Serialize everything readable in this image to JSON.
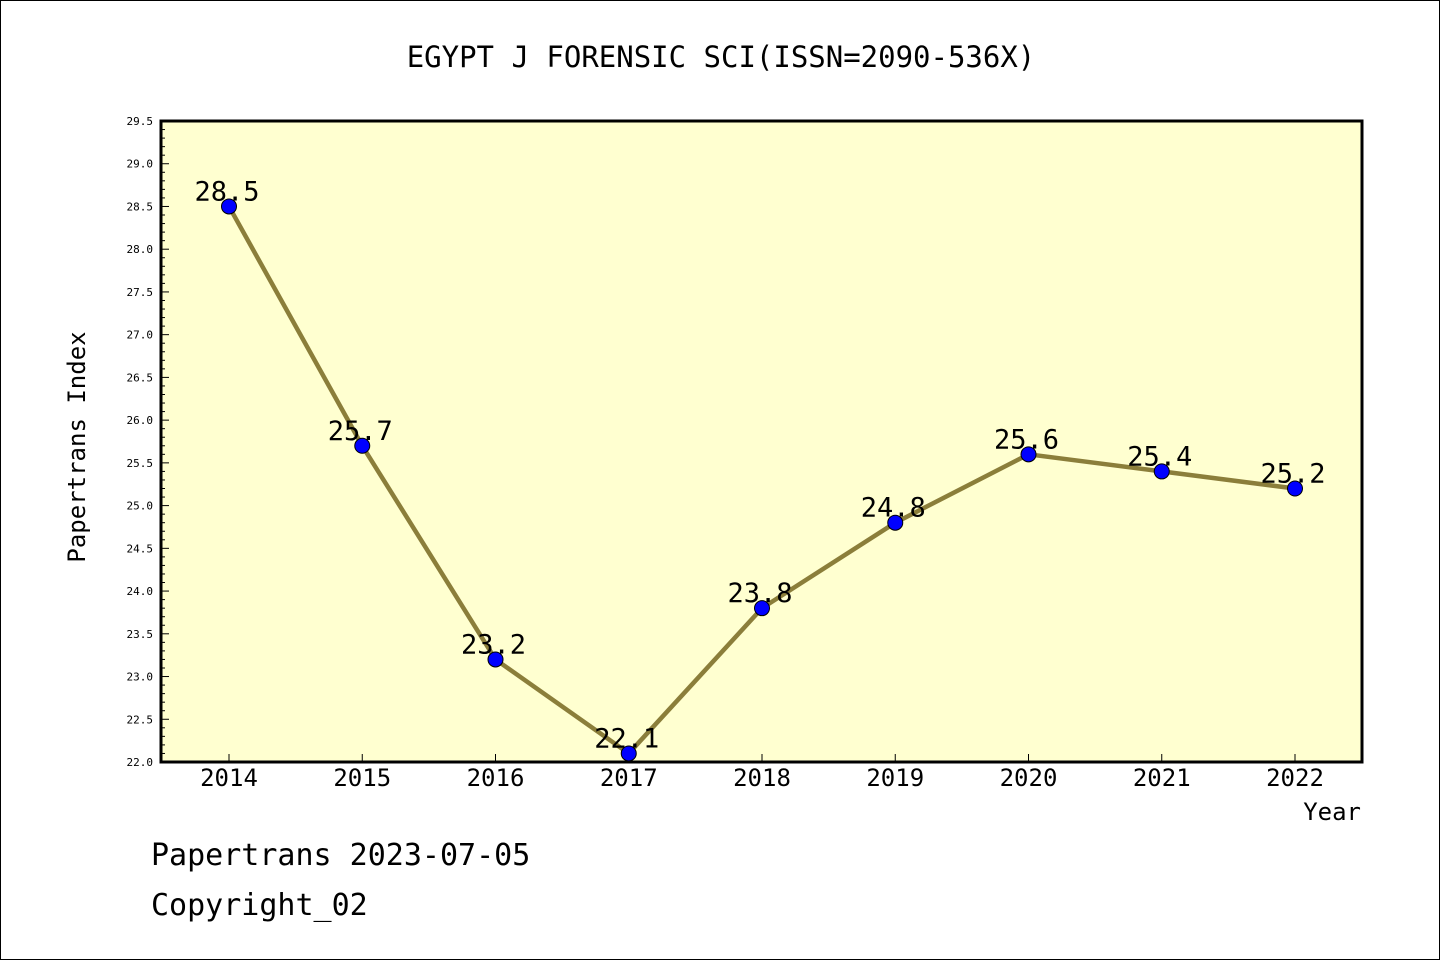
{
  "chart_data": {
    "type": "line",
    "title": "EGYPT J FORENSIC SCI(ISSN=2090-536X)",
    "xlabel": "Year",
    "ylabel": "Papertrans Index",
    "categories": [
      "2014",
      "2015",
      "2016",
      "2017",
      "2018",
      "2019",
      "2020",
      "2021",
      "2022"
    ],
    "series": [
      {
        "values": [
          28.5,
          25.7,
          23.2,
          22.1,
          23.8,
          24.8,
          25.6,
          25.4,
          25.2
        ],
        "labels": [
          "28.5",
          "25.7",
          "23.2",
          "22.1",
          "23.8",
          "24.8",
          "25.6",
          "25.4",
          "25.2"
        ],
        "line_color": "#8b7e3a",
        "marker_color": "#0000ff"
      }
    ],
    "ylim": [
      22.0,
      29.5
    ],
    "yticks": [
      "22.0",
      "22.5",
      "23.0",
      "23.5",
      "24.0",
      "24.5",
      "25.0",
      "25.5",
      "26.0",
      "26.5",
      "27.0",
      "27.5",
      "28.0",
      "28.5",
      "29.0",
      "29.5"
    ],
    "plot_background": "#ffffd0",
    "grid": false
  },
  "footer": {
    "line1": "Papertrans 2023-07-05",
    "line2": "Copyright_02"
  }
}
